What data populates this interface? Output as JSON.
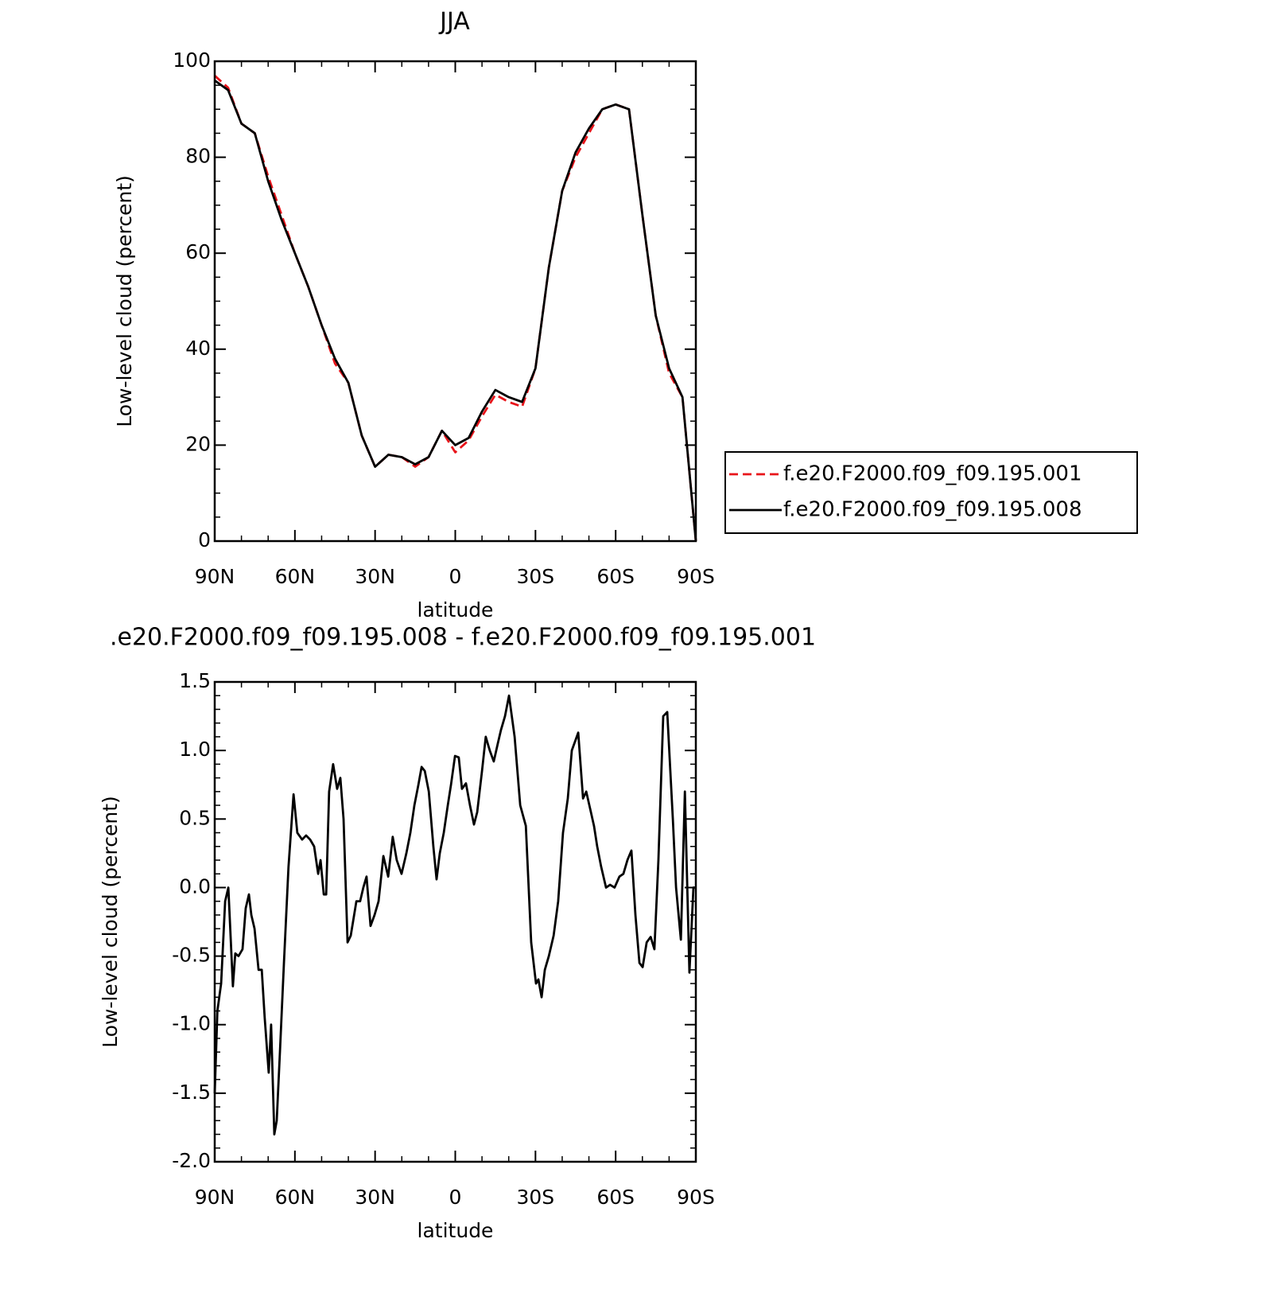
{
  "chart_data": [
    {
      "type": "line",
      "title": "JJA",
      "ylabel": "Low-level cloud (percent)",
      "xlabel": "latitude",
      "x": [
        90,
        85,
        80,
        75,
        70,
        65,
        60,
        55,
        50,
        45,
        40,
        35,
        30,
        25,
        20,
        15,
        10,
        5,
        0,
        -5,
        -10,
        -15,
        -20,
        -25,
        -30,
        -35,
        -40,
        -45,
        -50,
        -55,
        -60,
        -65,
        -70,
        -75,
        -80,
        -85,
        -90
      ],
      "series": [
        {
          "name": "f.e20.F2000.f09_f09.195.001",
          "color": "#e8141a",
          "style": "dashed",
          "values": [
            97,
            94.5,
            87,
            85,
            76,
            68,
            60,
            53,
            45,
            37,
            33,
            22,
            15.5,
            18,
            17.5,
            15.5,
            17.5,
            23,
            18.5,
            21,
            26,
            30.5,
            29,
            28,
            36,
            57,
            73,
            80,
            85,
            90,
            91,
            90,
            68,
            47,
            35,
            30,
            0
          ]
        },
        {
          "name": "f.e20.F2000.f09_f09.195.008",
          "color": "#000000",
          "style": "solid",
          "values": [
            96,
            94,
            87,
            85,
            75,
            67,
            60,
            53,
            45,
            38,
            33,
            22,
            15.5,
            18,
            17.5,
            16,
            17.5,
            23,
            20,
            21.5,
            27,
            31.5,
            30,
            29,
            36,
            57,
            73,
            81,
            86,
            90,
            91,
            90,
            68,
            47,
            36,
            30,
            0
          ]
        }
      ],
      "xlim": [
        90,
        -90
      ],
      "xticks": [
        {
          "value": 90,
          "label": "90N"
        },
        {
          "value": 60,
          "label": "60N"
        },
        {
          "value": 30,
          "label": "30N"
        },
        0,
        {
          "value": -30,
          "label": "30S"
        },
        {
          "value": -60,
          "label": "60S"
        },
        {
          "value": -90,
          "label": "90S"
        }
      ],
      "ylim": [
        0,
        100
      ],
      "yticks": [
        0,
        20,
        40,
        60,
        80,
        100
      ],
      "legend": "right"
    },
    {
      "type": "line",
      "title": ".e20.F2000.f09_f09.195.008 - f.e20.F2000.f09_f09.195.001",
      "ylabel": "Low-level cloud (percent)",
      "xlabel": "latitude",
      "x": [
        90,
        89,
        87.6,
        86.1,
        84.9,
        83.2,
        82.3,
        81.1,
        79.6,
        78.4,
        77.2,
        76.3,
        75.1,
        73.6,
        72.4,
        71.3,
        69.8,
        68.9,
        67.7,
        66.8,
        65.6,
        64.1,
        62.4,
        60.5,
        59.1,
        57.3,
        55.8,
        54.3,
        52.8,
        51.3,
        50.4,
        49.2,
        48.3,
        47.2,
        45.7,
        44.2,
        43,
        41.8,
        40.3,
        39.1,
        37,
        35.6,
        34.4,
        33.2,
        31.7,
        30.2,
        28.7,
        26.9,
        25.1,
        23.4,
        21.9,
        20.1,
        18.3,
        16.8,
        15.3,
        13.8,
        12.6,
        11.4,
        9.9,
        8.2,
        7,
        5.8,
        4.3,
        2.8,
        1.6,
        0.1,
        -1.3,
        -2.5,
        -4,
        -5.5,
        -7,
        -8.2,
        -10,
        -11.4,
        -12.9,
        -14.4,
        -15.9,
        -17.1,
        -18.6,
        -20.1,
        -22.2,
        -24.3,
        -26.4,
        -28.4,
        -30.2,
        -31.1,
        -32.3,
        -33.5,
        -35,
        -36.8,
        -38.5,
        -40.3,
        -42.1,
        -43.6,
        -46,
        -47.8,
        -49,
        -50.4,
        -51.9,
        -53.1,
        -54.6,
        -56.4,
        -57.9,
        -59.6,
        -61.4,
        -62.9,
        -64.4,
        -65.9,
        -67.4,
        -68.9,
        -70.1,
        -71.6,
        -73.1,
        -74.5,
        -76,
        -77.8,
        -79.3,
        -81.4,
        -82.6,
        -84.4,
        -85.9,
        -87.6,
        -89.1,
        -90
      ],
      "values": [
        -1.5,
        -0.9,
        -0.7,
        -0.1,
        0,
        -0.72,
        -0.48,
        -0.5,
        -0.45,
        -0.15,
        -0.05,
        -0.2,
        -0.3,
        -0.6,
        -0.6,
        -0.95,
        -1.35,
        -1,
        -1.8,
        -1.7,
        -1.2,
        -0.55,
        0.15,
        0.68,
        0.4,
        0.35,
        0.38,
        0.35,
        0.3,
        0.1,
        0.2,
        -0.05,
        -0.05,
        0.7,
        0.9,
        0.72,
        0.8,
        0.5,
        -0.4,
        -0.35,
        -0.1,
        -0.1,
        0,
        0.08,
        -0.28,
        -0.2,
        -0.1,
        0.23,
        0.08,
        0.37,
        0.2,
        0.1,
        0.25,
        0.4,
        0.6,
        0.75,
        0.88,
        0.85,
        0.7,
        0.3,
        0.06,
        0.25,
        0.4,
        0.6,
        0.75,
        0.96,
        0.95,
        0.72,
        0.76,
        0.6,
        0.46,
        0.55,
        0.85,
        1.1,
        1,
        0.92,
        1.05,
        1.15,
        1.25,
        1.4,
        1.1,
        0.6,
        0.45,
        -0.4,
        -0.7,
        -0.67,
        -0.8,
        -0.6,
        -0.5,
        -0.35,
        -0.1,
        0.4,
        0.65,
        1,
        1.13,
        0.65,
        0.7,
        0.58,
        0.45,
        0.3,
        0.15,
        0,
        0.02,
        0,
        0.08,
        0.1,
        0.2,
        0.27,
        -0.2,
        -0.55,
        -0.58,
        -0.4,
        -0.36,
        -0.45,
        0.2,
        1.25,
        1.28,
        0.5,
        0,
        -0.38,
        0.7,
        -0.62,
        0,
        0
      ],
      "color": "#000000",
      "xlim": [
        90,
        -90
      ],
      "xticks": [
        {
          "value": 90,
          "label": "90N"
        },
        {
          "value": 60,
          "label": "60N"
        },
        {
          "value": 30,
          "label": "30N"
        },
        0,
        {
          "value": -30,
          "label": "30S"
        },
        {
          "value": -60,
          "label": "60S"
        },
        {
          "value": -90,
          "label": "90S"
        }
      ],
      "ylim": [
        -2,
        1.5
      ],
      "yticks": [
        {
          "value": -2,
          "label": "-2.0"
        },
        {
          "value": -1.5,
          "label": "-1.5"
        },
        {
          "value": -1,
          "label": "-1.0"
        },
        {
          "value": -0.5,
          "label": "-0.5"
        },
        {
          "value": 0,
          "label": "0.0"
        },
        {
          "value": 0.5,
          "label": "0.5"
        },
        {
          "value": 1,
          "label": "1.0"
        },
        {
          "value": 1.5,
          "label": "1.5"
        }
      ]
    }
  ]
}
